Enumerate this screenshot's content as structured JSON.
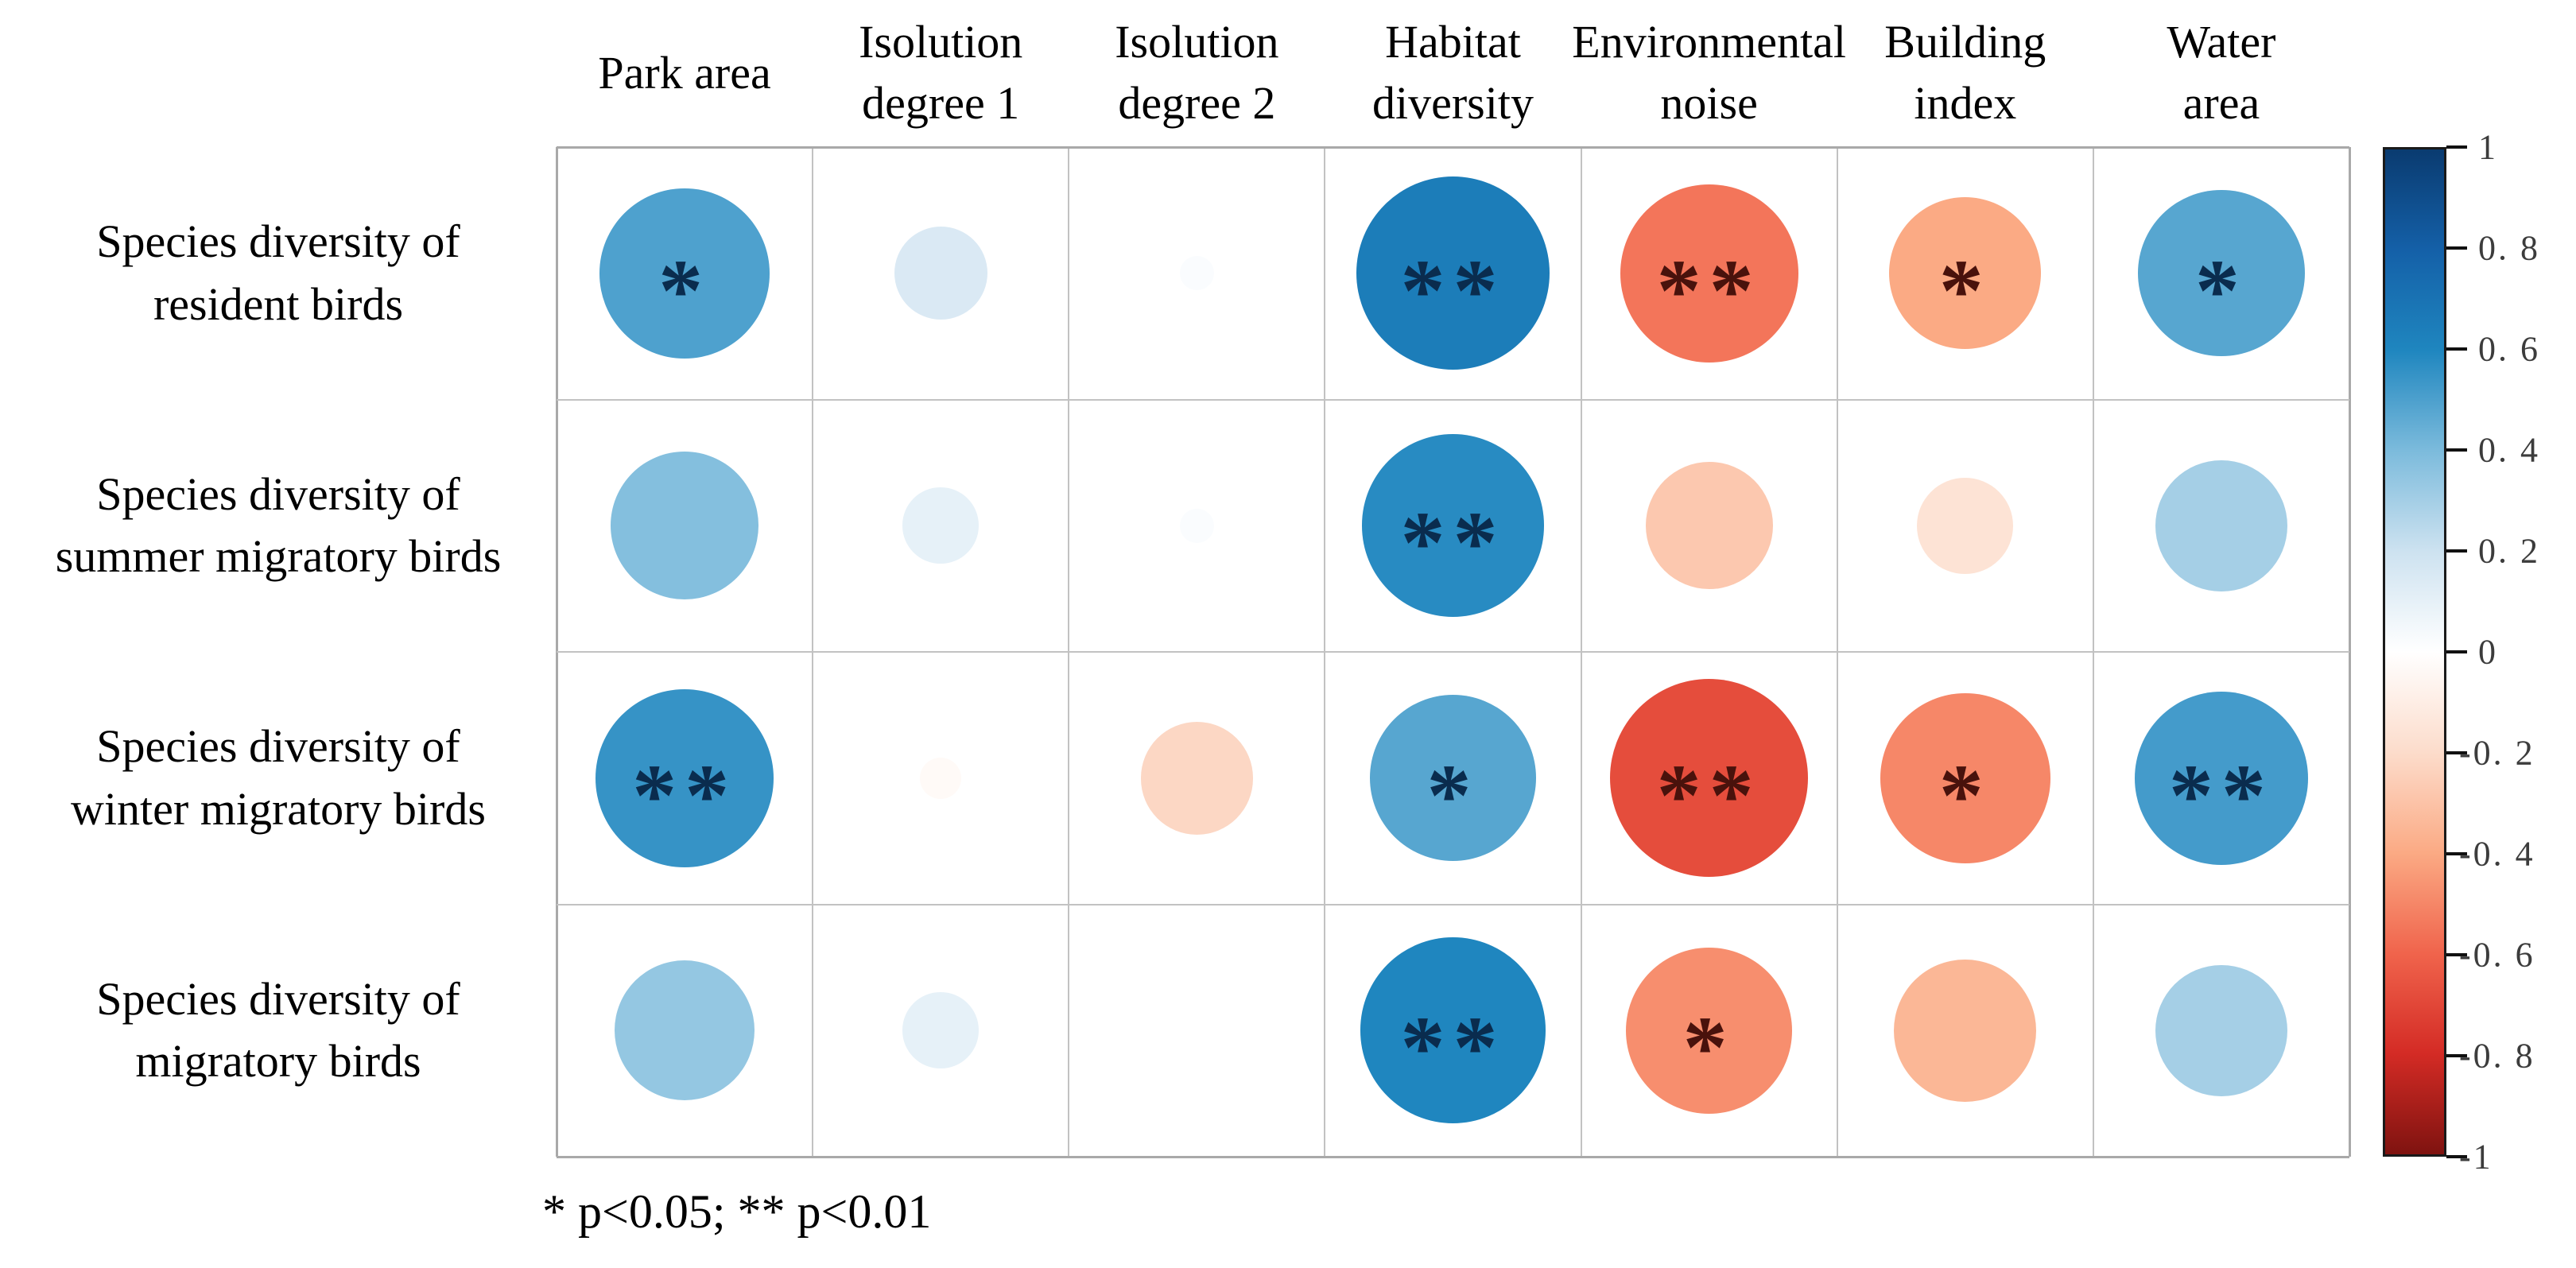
{
  "chart_data": {
    "type": "heatmap",
    "subtype": "correlation-bubble-matrix",
    "title": "",
    "x_categories": [
      "Park area",
      "Isolution degree 1",
      "Isolution degree 2",
      "Habitat diversity",
      "Environmental noise",
      "Building index",
      "Water area"
    ],
    "x_category_lines": [
      [
        "Park area"
      ],
      [
        "Isolution",
        "degree 1"
      ],
      [
        "Isolution",
        "degree 2"
      ],
      [
        "Habitat",
        "diversity"
      ],
      [
        "Environmental",
        "noise"
      ],
      [
        "Building",
        "index"
      ],
      [
        "Water",
        "area"
      ]
    ],
    "y_categories": [
      "Species diversity of resident birds",
      "Species diversity of summer migratory birds",
      "Species diversity of winter migratory birds",
      "Species diversity of migratory birds"
    ],
    "y_category_lines": [
      [
        "Species diversity of",
        "resident birds"
      ],
      [
        "Species diversity of",
        "summer migratory birds"
      ],
      [
        "Species diversity of",
        "winter migratory birds"
      ],
      [
        "Species diversity of",
        "migratory birds"
      ]
    ],
    "values": [
      [
        0.5,
        0.15,
        0.02,
        0.65,
        -0.55,
        -0.4,
        0.48
      ],
      [
        0.38,
        0.1,
        0.02,
        0.58,
        -0.28,
        -0.16,
        0.3
      ],
      [
        0.55,
        -0.03,
        -0.22,
        0.48,
        -0.68,
        -0.5,
        0.52
      ],
      [
        0.34,
        0.1,
        0.0,
        0.6,
        -0.48,
        -0.35,
        0.3
      ]
    ],
    "significance": [
      [
        "*",
        "",
        "",
        "**",
        "**",
        "*",
        "*"
      ],
      [
        "",
        "",
        "",
        "**",
        "",
        "",
        ""
      ],
      [
        "**",
        "",
        "",
        "*",
        "**",
        "*",
        "**"
      ],
      [
        "",
        "",
        "",
        "**",
        "*",
        "",
        ""
      ]
    ],
    "value_encoding": "circle area and color encode correlation coefficient r",
    "grid": true,
    "legend_position": "right-colorbar",
    "colorbar": {
      "min": -1,
      "max": 1,
      "tick_labels": [
        "1",
        "0. 8",
        "0. 6",
        "0. 4",
        "0. 2",
        "0",
        "-0. 2",
        "-0. 4",
        "-0. 6",
        "-0. 8",
        "-1"
      ]
    },
    "legend_note": "* p<0.05; ** p<0.01"
  },
  "colors": {
    "gradient": [
      {
        "t": -1.0,
        "hex": "#7f1310"
      },
      {
        "t": -0.8,
        "hex": "#d42b25"
      },
      {
        "t": -0.6,
        "hex": "#f0644c"
      },
      {
        "t": -0.4,
        "hex": "#fbaa84"
      },
      {
        "t": -0.2,
        "hex": "#fcdccb"
      },
      {
        "t": 0.0,
        "hex": "#ffffff"
      },
      {
        "t": 0.2,
        "hex": "#cde2f0"
      },
      {
        "t": 0.4,
        "hex": "#7cbbdc"
      },
      {
        "t": 0.6,
        "hex": "#1f86bf"
      },
      {
        "t": 0.8,
        "hex": "#1460a8"
      },
      {
        "t": 1.0,
        "hex": "#0a3b70"
      }
    ],
    "grid_line": "#c2c2c2",
    "grid_border": "#a9a9a9",
    "colorbar_border": "#1a1a1a",
    "tick_label": "#3c3c3c",
    "asterisk_on_positive": "#0a2c4e",
    "asterisk_on_negative": "#49120c",
    "text": "#000000",
    "background": "#ffffff"
  }
}
